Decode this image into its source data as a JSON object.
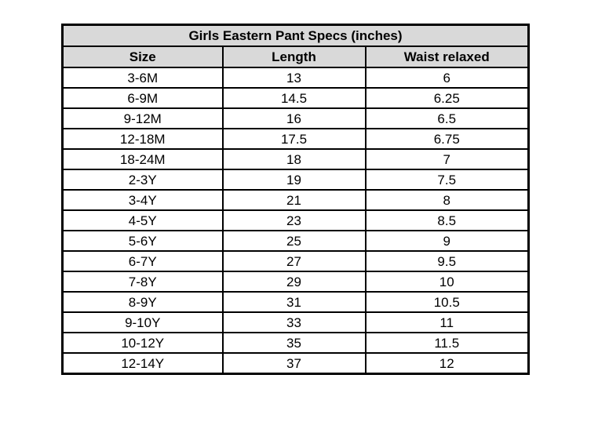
{
  "chart_data": {
    "type": "table",
    "title": "Girls Eastern Pant Specs (inches)",
    "columns": [
      "Size",
      "Length",
      "Waist relaxed"
    ],
    "rows": [
      [
        "3-6M",
        "13",
        "6"
      ],
      [
        "6-9M",
        "14.5",
        "6.25"
      ],
      [
        "9-12M",
        "16",
        "6.5"
      ],
      [
        "12-18M",
        "17.5",
        "6.75"
      ],
      [
        "18-24M",
        "18",
        "7"
      ],
      [
        "2-3Y",
        "19",
        "7.5"
      ],
      [
        "3-4Y",
        "21",
        "8"
      ],
      [
        "4-5Y",
        "23",
        "8.5"
      ],
      [
        "5-6Y",
        "25",
        "9"
      ],
      [
        "6-7Y",
        "27",
        "9.5"
      ],
      [
        "7-8Y",
        "29",
        "10"
      ],
      [
        "8-9Y",
        "31",
        "10.5"
      ],
      [
        "9-10Y",
        "33",
        "11"
      ],
      [
        "10-12Y",
        "35",
        "11.5"
      ],
      [
        "12-14Y",
        "37",
        "12"
      ]
    ]
  },
  "colors": {
    "header_background": "#d9d9d9",
    "border": "#000000",
    "page_background": "#ffffff",
    "text": "#000000"
  }
}
